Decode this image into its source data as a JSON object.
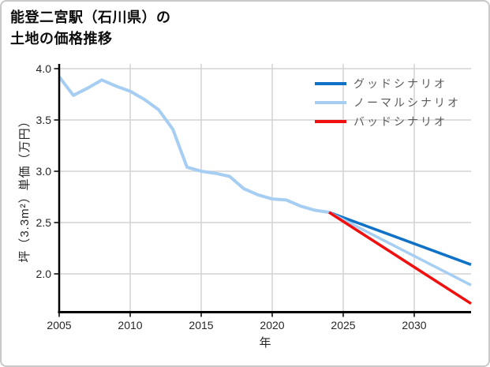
{
  "title": {
    "line1": "能登二宮駅（石川県）の",
    "line2": "土地の価格推移"
  },
  "colors": {
    "background": "#ffffff",
    "frame_border": "#c9c9c9",
    "grid": "#d4d4d4",
    "axis": "#000000",
    "tick_text": "#262626",
    "legend_text": "#595959",
    "good_blue": "#0f72c6",
    "normal_light_blue": "#a6cdf2",
    "bad_red": "#f01010"
  },
  "chart_data": {
    "type": "line",
    "title": "能登二宮駅（石川県）の土地の価格推移",
    "xlabel": "年",
    "ylabel": "坪（3.3m²）単価（万円）",
    "xlim": [
      2005,
      2034
    ],
    "ylim": [
      1.631,
      4.046
    ],
    "xticks": [
      2005,
      2010,
      2015,
      2020,
      2025,
      2030
    ],
    "yticks": [
      2.0,
      2.5,
      3.0,
      3.5,
      4.0
    ],
    "grid": true,
    "legend_position": "upper-right-inside",
    "series": [
      {
        "name": "history",
        "in_legend": false,
        "color": "#a6cdf2",
        "width": 4,
        "x": [
          2005,
          2006,
          2007,
          2008,
          2009,
          2010,
          2011,
          2012,
          2013,
          2014,
          2015,
          2016,
          2017,
          2018,
          2019,
          2020,
          2021,
          2022,
          2023,
          2024
        ],
        "values": [
          3.92,
          3.74,
          3.81,
          3.89,
          3.83,
          3.78,
          3.7,
          3.6,
          3.41,
          3.04,
          3.0,
          2.98,
          2.95,
          2.83,
          2.77,
          2.73,
          2.72,
          2.66,
          2.62,
          2.6
        ]
      },
      {
        "name": "グッドシナリオ",
        "in_legend": true,
        "color": "#0f72c6",
        "width": 3.5,
        "x": [
          2024,
          2034
        ],
        "values": [
          2.6,
          2.09
        ]
      },
      {
        "name": "ノーマルシナリオ",
        "in_legend": true,
        "color": "#a6cdf2",
        "width": 3.5,
        "x": [
          2024,
          2034
        ],
        "values": [
          2.6,
          1.89
        ]
      },
      {
        "name": "バッドシナリオ",
        "in_legend": true,
        "color": "#f01010",
        "width": 3.5,
        "x": [
          2024,
          2034
        ],
        "values": [
          2.6,
          1.71
        ]
      }
    ]
  }
}
